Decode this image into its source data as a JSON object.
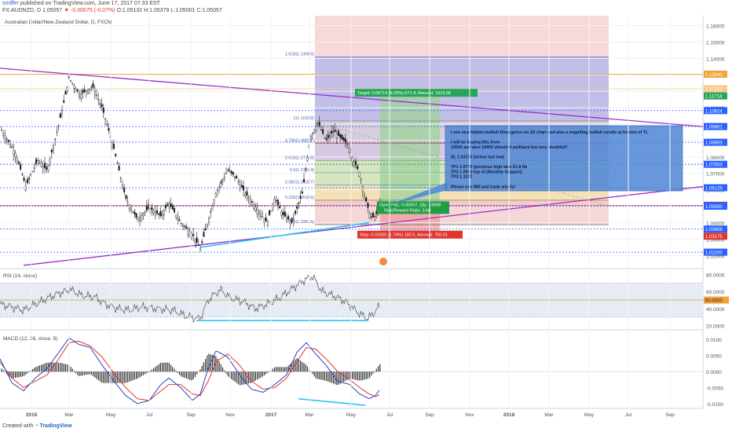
{
  "header": {
    "author": "smiffer",
    "published": "published on TradingView.com, June 17, 2017 07:33 EST",
    "symbol": "FX:AUDNZD, D",
    "last": "1.05057",
    "change": "▼ -0.00075 (-0.07%)",
    "ohlc": "O:1.05132 H:1.05379 L:1.05001 C:1.05057"
  },
  "footer": {
    "created_with": "Created with",
    "brand": "TradingView"
  },
  "chart_data": [
    {
      "type": "candlestick",
      "title": "Australian Dollar/New Zealand Dollar, D, FXCM",
      "ylim": [
        1.012,
        1.166
      ],
      "price_ticks": [
        "1.16000",
        "1.15000",
        "1.14000",
        "1.13000",
        "1.12000",
        "1.11000",
        "1.10000",
        "1.09000",
        "1.08000",
        "1.07000",
        "1.06000",
        "1.05000",
        "1.04000",
        "1.03000",
        "1.02000"
      ],
      "price_badges": [
        {
          "label": "1.13040",
          "value": 1.1304,
          "color": "#f2a33a"
        },
        {
          "label": "1.12152",
          "value": 1.12152,
          "color": "#f7c98a"
        },
        {
          "label": "1.11714",
          "value": 1.11714,
          "color": "#26a65b"
        },
        {
          "label": "1.10824",
          "value": 1.10824,
          "color": "#2962ff"
        },
        {
          "label": "1.09851",
          "value": 1.09851,
          "color": "#2962ff"
        },
        {
          "label": "1.08893",
          "value": 1.08893,
          "color": "#2962ff"
        },
        {
          "label": "1.07553",
          "value": 1.07553,
          "color": "#2962ff"
        },
        {
          "label": "1.06125",
          "value": 1.06125,
          "color": "#2962ff"
        },
        {
          "label": "1.05057",
          "value": 1.05057,
          "color": "#e0342c"
        },
        {
          "label": "1.05022",
          "value": 1.05022,
          "color": "#2962ff"
        },
        {
          "label": "1.05000",
          "value": 1.05,
          "color": "#2962ff"
        },
        {
          "label": "1.03608",
          "value": 1.03608,
          "color": "#2962ff"
        },
        {
          "label": "1.03175",
          "value": 1.03175,
          "color": "#e0342c"
        },
        {
          "label": "1.02200",
          "value": 1.022,
          "color": "#2962ff"
        }
      ],
      "fib_levels": [
        {
          "label": "1.618(1.14089)",
          "value": 1.14089,
          "color": "#5b6dd1"
        },
        {
          "label": "1(1.10188)",
          "value": 1.10188,
          "color": "#888888"
        },
        {
          "label": "0.786(1.08837)",
          "value": 1.08837,
          "color": "#d0544d"
        },
        {
          "label": "0.618(1.07778)",
          "value": 1.07778,
          "color": "#7fbf6a"
        },
        {
          "label": "0.5(1.07034)",
          "value": 1.07034,
          "color": "#3fa66e"
        },
        {
          "label": "0.382(1.06287)",
          "value": 1.06287,
          "color": "#3aa3c2"
        },
        {
          "label": "0.236(1.05366)",
          "value": 1.05366,
          "color": "#7a7a7a"
        },
        {
          "label": "0(1.03876)",
          "value": 1.03876,
          "color": "#7a7a7a"
        }
      ],
      "position": {
        "entry": 1.05057,
        "target_value": 1.11714,
        "stop_value": 1.03175,
        "target_label": "Target: 0.06714 (6.39%) 671.4, Amount: 1919.68",
        "stop_label": "Stop: 0.01825 (1.74%) 182.5, Amount: 750.01",
        "open_label": "Open P&L: 0.00057, Qty: 13698",
        "ratio_label": "Risk/Reward Ratio: 3.68"
      },
      "annotation": [
        "I see nice hidden bullish Divergence on 1D chart and also a engulfing bullish candle at bottom of TL",
        "",
        "I will be buying this from",
        "10505 and also 10400 should it pullback but very doubtful!!",
        "",
        "SL 1.03170 (below last low)",
        "",
        "TP1 1.0770 (previous high also 61.8 fib",
        "TP2 1.0972 top of  (Monthly Support)",
        "TP3 1.1100",
        "",
        "Please use MM and trade wisely!"
      ],
      "path": [
        [
          0,
          1.098
        ],
        [
          20,
          1.082
        ],
        [
          33,
          1.062
        ],
        [
          48,
          1.078
        ],
        [
          60,
          1.072
        ],
        [
          75,
          1.1
        ],
        [
          88,
          1.128
        ],
        [
          102,
          1.118
        ],
        [
          118,
          1.123
        ],
        [
          130,
          1.11
        ],
        [
          145,
          1.085
        ],
        [
          160,
          1.055
        ],
        [
          175,
          1.042
        ],
        [
          190,
          1.049
        ],
        [
          205,
          1.044
        ],
        [
          215,
          1.052
        ],
        [
          230,
          1.04
        ],
        [
          245,
          1.033
        ],
        [
          255,
          1.024
        ],
        [
          262,
          1.036
        ],
        [
          275,
          1.058
        ],
        [
          290,
          1.072
        ],
        [
          300,
          1.068
        ],
        [
          312,
          1.058
        ],
        [
          325,
          1.05
        ],
        [
          340,
          1.04
        ],
        [
          350,
          1.055
        ],
        [
          360,
          1.045
        ],
        [
          372,
          1.04
        ],
        [
          385,
          1.058
        ],
        [
          395,
          1.092
        ],
        [
          405,
          1.101
        ],
        [
          415,
          1.09
        ],
        [
          425,
          1.096
        ],
        [
          433,
          1.092
        ],
        [
          442,
          1.088
        ],
        [
          450,
          1.078
        ],
        [
          458,
          1.07
        ],
        [
          465,
          1.055
        ],
        [
          472,
          1.043
        ],
        [
          478,
          1.044
        ],
        [
          484,
          1.05
        ]
      ],
      "x_ticks": [
        "2016",
        "Mar",
        "May",
        "Jul",
        "Sep",
        "Nov",
        "2017",
        "Mar",
        "May",
        "Jul",
        "Sep",
        "Nov",
        "2018",
        "Mar",
        "May",
        "Jul",
        "Sep"
      ]
    },
    {
      "type": "line",
      "title": "RSI (14, close)",
      "ylim": [
        15,
        85
      ],
      "ticks": [
        "80.0000",
        "60.0000",
        "40.0000",
        "20.0000"
      ],
      "badge": {
        "label": "50.0000",
        "value": 50
      },
      "path": [
        [
          0,
          45
        ],
        [
          15,
          42
        ],
        [
          30,
          38
        ],
        [
          45,
          45
        ],
        [
          60,
          52
        ],
        [
          75,
          58
        ],
        [
          90,
          62
        ],
        [
          105,
          55
        ],
        [
          120,
          54
        ],
        [
          135,
          45
        ],
        [
          150,
          40
        ],
        [
          165,
          38
        ],
        [
          180,
          42
        ],
        [
          200,
          40
        ],
        [
          220,
          38
        ],
        [
          240,
          30
        ],
        [
          255,
          28
        ],
        [
          265,
          50
        ],
        [
          280,
          62
        ],
        [
          295,
          52
        ],
        [
          310,
          48
        ],
        [
          325,
          40
        ],
        [
          340,
          45
        ],
        [
          355,
          52
        ],
        [
          370,
          62
        ],
        [
          385,
          72
        ],
        [
          398,
          78
        ],
        [
          410,
          60
        ],
        [
          425,
          55
        ],
        [
          440,
          48
        ],
        [
          455,
          36
        ],
        [
          468,
          28
        ],
        [
          476,
          35
        ],
        [
          484,
          44
        ]
      ]
    },
    {
      "type": "histogram+line",
      "title": "MACD (12, 26, close, 9)",
      "ylim": [
        -0.0115,
        0.0125
      ],
      "ticks": [
        "0.0100",
        "0.0050",
        "0.0000",
        "-0.0050",
        "-0.0100"
      ],
      "macd": [
        [
          0,
          0.004
        ],
        [
          15,
          -0.0035
        ],
        [
          30,
          -0.006
        ],
        [
          45,
          -0.002
        ],
        [
          60,
          0.001
        ],
        [
          75,
          0.006
        ],
        [
          88,
          0.0105
        ],
        [
          100,
          0.0085
        ],
        [
          115,
          0.0075
        ],
        [
          130,
          0.002
        ],
        [
          145,
          -0.003
        ],
        [
          160,
          -0.0075
        ],
        [
          175,
          -0.01
        ],
        [
          190,
          -0.009
        ],
        [
          205,
          -0.004
        ],
        [
          215,
          -0.002
        ],
        [
          230,
          -0.005
        ],
        [
          245,
          -0.009
        ],
        [
          255,
          -0.007
        ],
        [
          265,
          0.001
        ],
        [
          275,
          0.0065
        ],
        [
          290,
          0.0045
        ],
        [
          305,
          -0.001
        ],
        [
          320,
          -0.0055
        ],
        [
          335,
          -0.0065
        ],
        [
          350,
          -0.004
        ],
        [
          365,
          -0.001
        ],
        [
          378,
          0.006
        ],
        [
          390,
          0.009
        ],
        [
          402,
          0.0055
        ],
        [
          415,
          0.002
        ],
        [
          430,
          -0.003
        ],
        [
          445,
          -0.004
        ],
        [
          458,
          -0.007
        ],
        [
          470,
          -0.0085
        ],
        [
          478,
          -0.0075
        ],
        [
          484,
          -0.0055
        ]
      ],
      "signal": [
        [
          0,
          0.003
        ],
        [
          15,
          -0.002
        ],
        [
          30,
          -0.005
        ],
        [
          45,
          -0.003
        ],
        [
          60,
          -0.001
        ],
        [
          75,
          0.004
        ],
        [
          88,
          0.009
        ],
        [
          100,
          0.0095
        ],
        [
          115,
          0.008
        ],
        [
          130,
          0.0045
        ],
        [
          145,
          -0.0005
        ],
        [
          160,
          -0.005
        ],
        [
          175,
          -0.0085
        ],
        [
          190,
          -0.009
        ],
        [
          205,
          -0.006
        ],
        [
          215,
          -0.004
        ],
        [
          230,
          -0.004
        ],
        [
          245,
          -0.007
        ],
        [
          255,
          -0.0075
        ],
        [
          265,
          -0.003
        ],
        [
          275,
          0.003
        ],
        [
          290,
          0.0055
        ],
        [
          305,
          0.002
        ],
        [
          320,
          -0.003
        ],
        [
          335,
          -0.0055
        ],
        [
          350,
          -0.005
        ],
        [
          365,
          -0.002
        ],
        [
          378,
          0.003
        ],
        [
          390,
          0.0075
        ],
        [
          402,
          0.007
        ],
        [
          415,
          0.004
        ],
        [
          430,
          0.0
        ],
        [
          445,
          -0.0025
        ],
        [
          458,
          -0.005
        ],
        [
          470,
          -0.007
        ],
        [
          478,
          -0.0078
        ],
        [
          484,
          -0.0072
        ]
      ]
    }
  ]
}
